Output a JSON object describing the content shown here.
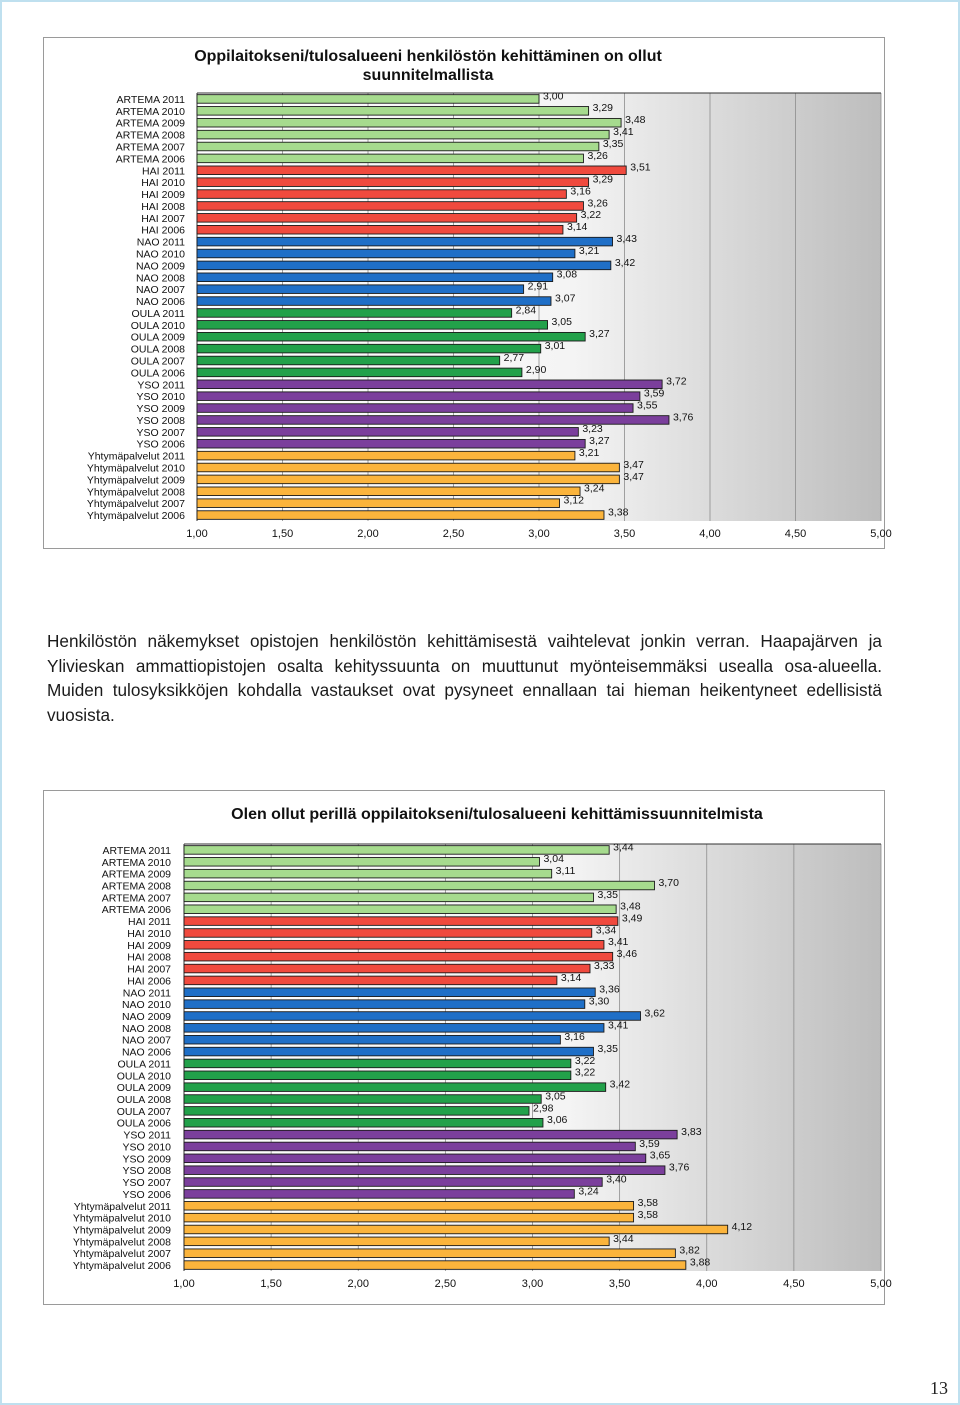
{
  "body_text": "Henkilöstön näkemykset opistojen henkilöstön kehittämisestä vaihtelevat jonkin verran. Haapajärven ja Ylivieskan ammattiopistojen osalta kehityssuunta on muuttunut myönteisemmäksi usealla osa-alueella. Muiden tulosyksikköjen kohdalla vastaukset ovat pysyneet ennallaan tai hieman heikentyneet edellisistä vuosista.",
  "page_number": "13",
  "colors": {
    "ARTEMA": "#a6db8e",
    "HAI": "#f04a3e",
    "NAO": "#1f6fc7",
    "OULA": "#22a14a",
    "YSO": "#7b3f9c",
    "Yhtymäpalvelut": "#fbb43c"
  },
  "chart_data": [
    {
      "type": "bar",
      "orientation": "horizontal",
      "title": "Oppilaitokseni/tulosalueeni henkilöstön kehittäminen on ollut suunnitelmallista",
      "xlim": [
        1,
        5
      ],
      "xticks": [
        "1,00",
        "1,50",
        "2,00",
        "2,50",
        "3,00",
        "3,50",
        "4,00",
        "4,50",
        "5,00"
      ],
      "grid": "vertical",
      "categories": [
        "ARTEMA 2011",
        "ARTEMA 2010",
        "ARTEMA 2009",
        "ARTEMA 2008",
        "ARTEMA 2007",
        "ARTEMA 2006",
        "HAI 2011",
        "HAI 2010",
        "HAI 2009",
        "HAI 2008",
        "HAI 2007",
        "HAI 2006",
        "NAO 2011",
        "NAO 2010",
        "NAO 2009",
        "NAO 2008",
        "NAO 2007",
        "NAO 2006",
        "OULA 2011",
        "OULA 2010",
        "OULA 2009",
        "OULA 2008",
        "OULA 2007",
        "OULA 2006",
        "YSO 2011",
        "YSO 2010",
        "YSO 2009",
        "YSO 2008",
        "YSO 2007",
        "YSO 2006",
        "Yhtymäpalvelut 2011",
        "Yhtymäpalvelut 2010",
        "Yhtymäpalvelut 2009",
        "Yhtymäpalvelut 2008",
        "Yhtymäpalvelut 2007",
        "Yhtymäpalvelut 2006"
      ],
      "groups": [
        "ARTEMA",
        "ARTEMA",
        "ARTEMA",
        "ARTEMA",
        "ARTEMA",
        "ARTEMA",
        "HAI",
        "HAI",
        "HAI",
        "HAI",
        "HAI",
        "HAI",
        "NAO",
        "NAO",
        "NAO",
        "NAO",
        "NAO",
        "NAO",
        "OULA",
        "OULA",
        "OULA",
        "OULA",
        "OULA",
        "OULA",
        "YSO",
        "YSO",
        "YSO",
        "YSO",
        "YSO",
        "YSO",
        "Yhtymäpalvelut",
        "Yhtymäpalvelut",
        "Yhtymäpalvelut",
        "Yhtymäpalvelut",
        "Yhtymäpalvelut",
        "Yhtymäpalvelut"
      ],
      "values": [
        3.0,
        3.29,
        3.48,
        3.41,
        3.35,
        3.26,
        3.51,
        3.29,
        3.16,
        3.26,
        3.22,
        3.14,
        3.43,
        3.21,
        3.42,
        3.08,
        2.91,
        3.07,
        2.84,
        3.05,
        3.27,
        3.01,
        2.77,
        2.9,
        3.72,
        3.59,
        3.55,
        3.76,
        3.23,
        3.27,
        3.21,
        3.47,
        3.47,
        3.24,
        3.12,
        3.38
      ],
      "data_labels": [
        "3,00",
        "3,29",
        "3,48",
        "3,41",
        "3,35",
        "3,26",
        "3,51",
        "3,29",
        "3,16",
        "3,26",
        "3,22",
        "3,14",
        "3,43",
        "3,21",
        "3,42",
        "3,08",
        "2,91",
        "3,07",
        "2,84",
        "3,05",
        "3,27",
        "3,01",
        "2,77",
        "2,90",
        "3,72",
        "3,59",
        "3,55",
        "3,76",
        "3,23",
        "3,27",
        "3,21",
        "3,47",
        "3,47",
        "3,24",
        "3,12",
        "3,38"
      ]
    },
    {
      "type": "bar",
      "orientation": "horizontal",
      "title": "Olen ollut perillä oppilaitokseni/tulosalueeni kehittämissuunnitelmista",
      "xlim": [
        1,
        5
      ],
      "xticks": [
        "1,00",
        "1,50",
        "2,00",
        "2,50",
        "3,00",
        "3,50",
        "4,00",
        "4,50",
        "5,00"
      ],
      "grid": "vertical",
      "categories": [
        "ARTEMA 2011",
        "ARTEMA 2010",
        "ARTEMA 2009",
        "ARTEMA 2008",
        "ARTEMA 2007",
        "ARTEMA 2006",
        "HAI 2011",
        "HAI 2010",
        "HAI 2009",
        "HAI 2008",
        "HAI 2007",
        "HAI 2006",
        "NAO 2011",
        "NAO 2010",
        "NAO 2009",
        "NAO 2008",
        "NAO 2007",
        "NAO 2006",
        "OULA 2011",
        "OULA 2010",
        "OULA 2009",
        "OULA 2008",
        "OULA 2007",
        "OULA 2006",
        "YSO 2011",
        "YSO 2010",
        "YSO 2009",
        "YSO 2008",
        "YSO 2007",
        "YSO 2006",
        "Yhtymäpalvelut 2011",
        "Yhtymäpalvelut 2010",
        "Yhtymäpalvelut 2009",
        "Yhtymäpalvelut 2008",
        "Yhtymäpalvelut 2007",
        "Yhtymäpalvelut 2006"
      ],
      "groups": [
        "ARTEMA",
        "ARTEMA",
        "ARTEMA",
        "ARTEMA",
        "ARTEMA",
        "ARTEMA",
        "HAI",
        "HAI",
        "HAI",
        "HAI",
        "HAI",
        "HAI",
        "NAO",
        "NAO",
        "NAO",
        "NAO",
        "NAO",
        "NAO",
        "OULA",
        "OULA",
        "OULA",
        "OULA",
        "OULA",
        "OULA",
        "YSO",
        "YSO",
        "YSO",
        "YSO",
        "YSO",
        "YSO",
        "Yhtymäpalvelut",
        "Yhtymäpalvelut",
        "Yhtymäpalvelut",
        "Yhtymäpalvelut",
        "Yhtymäpalvelut",
        "Yhtymäpalvelut"
      ],
      "values": [
        3.44,
        3.04,
        3.11,
        3.7,
        3.35,
        3.48,
        3.49,
        3.34,
        3.41,
        3.46,
        3.33,
        3.14,
        3.36,
        3.3,
        3.62,
        3.41,
        3.16,
        3.35,
        3.22,
        3.22,
        3.42,
        3.05,
        2.98,
        3.06,
        3.83,
        3.59,
        3.65,
        3.76,
        3.4,
        3.24,
        3.58,
        3.58,
        4.12,
        3.44,
        3.82,
        3.88
      ],
      "data_labels": [
        "3,44",
        "3,04",
        "3,11",
        "3,70",
        "3,35",
        "3,48",
        "3,49",
        "3,34",
        "3,41",
        "3,46",
        "3,33",
        "3,14",
        "3,36",
        "3,30",
        "3,62",
        "3,41",
        "3,16",
        "3,35",
        "3,22",
        "3,22",
        "3,42",
        "3,05",
        "2,98",
        "3,06",
        "3,83",
        "3,59",
        "3,65",
        "3,76",
        "3,40",
        "3,24",
        "3,58",
        "3,58",
        "4,12",
        "3,44",
        "3,82",
        "3,88"
      ]
    }
  ]
}
